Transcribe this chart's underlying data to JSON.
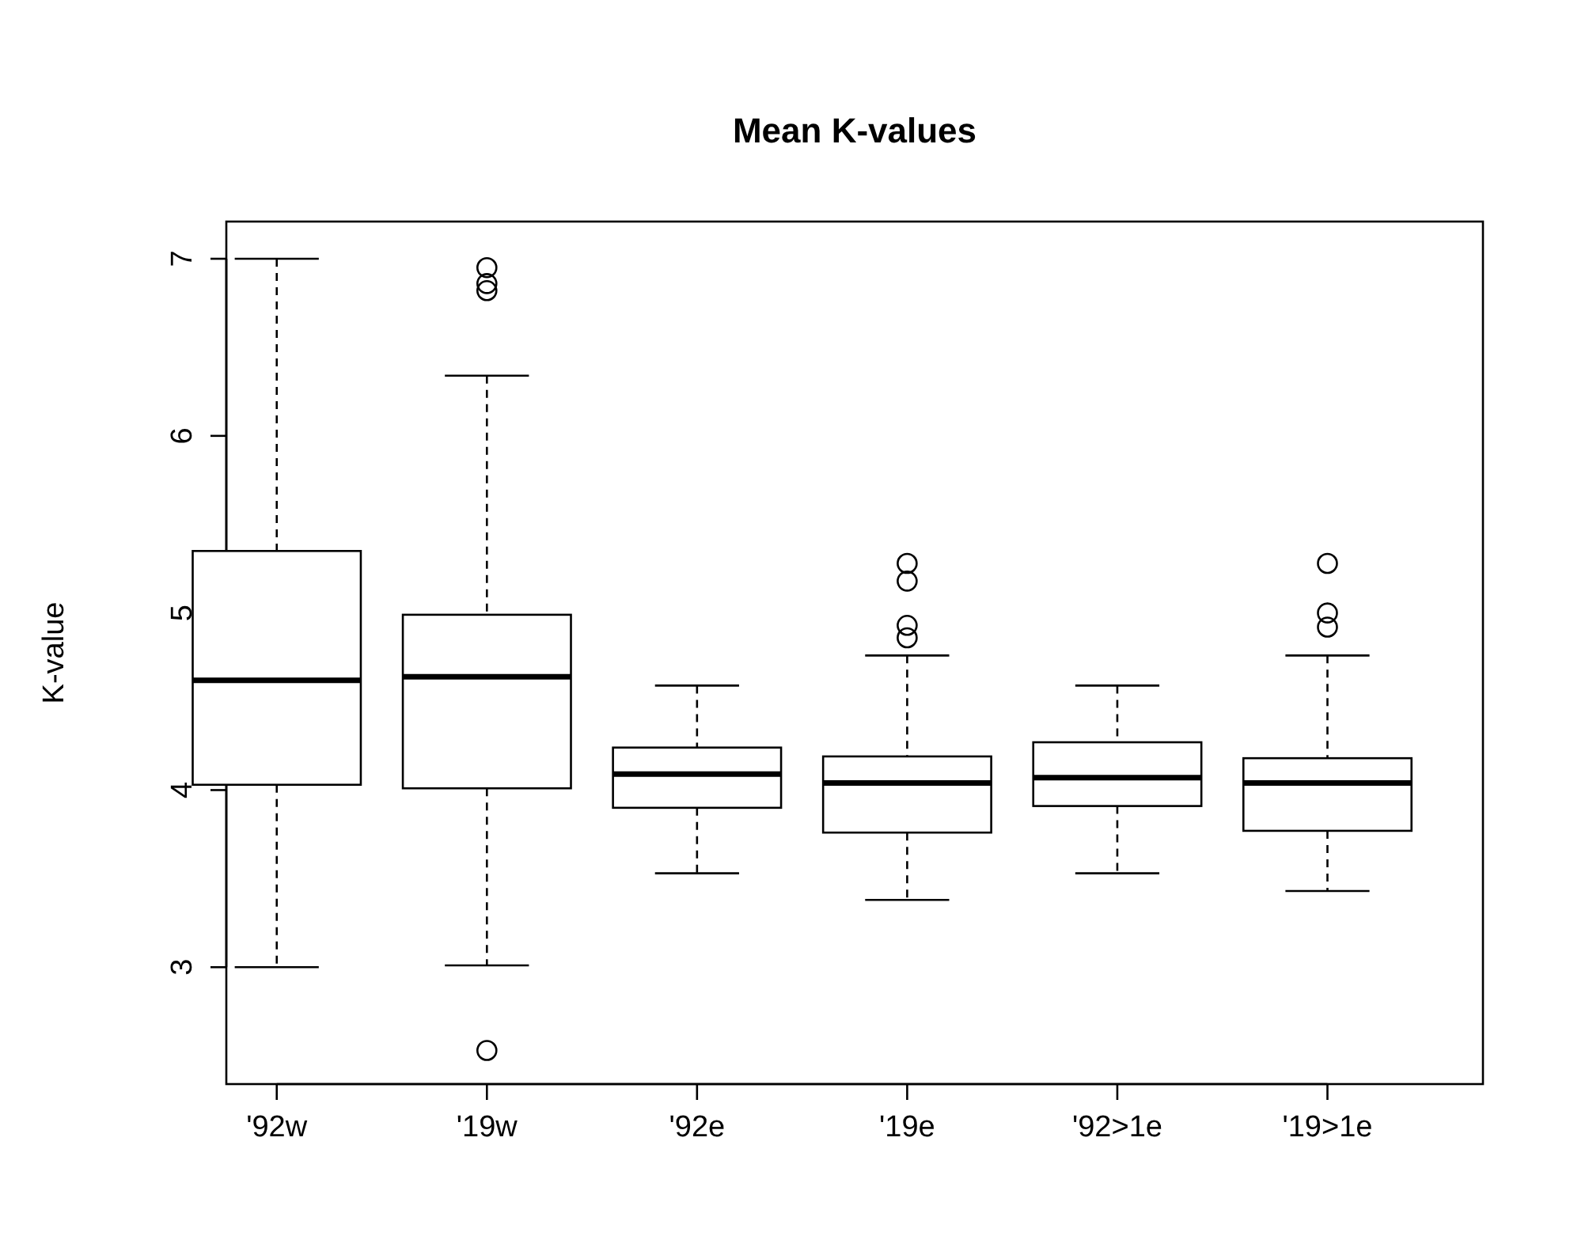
{
  "chart_data": {
    "type": "box",
    "title": "Mean K-values",
    "ylabel": "K-value",
    "categories": [
      "'92w",
      "'19w",
      "'92e",
      "'19e",
      "'92>1e",
      "'19>1e"
    ],
    "boxes": [
      {
        "low": 3.0,
        "q1": 4.03,
        "median": 4.62,
        "q3": 5.35,
        "high": 7.0
      },
      {
        "low": 3.01,
        "q1": 4.01,
        "median": 4.64,
        "q3": 4.99,
        "high": 6.34,
        "outliers": [
          6.95,
          6.86,
          6.82,
          2.53
        ]
      },
      {
        "low": 3.53,
        "q1": 3.9,
        "median": 4.09,
        "q3": 4.24,
        "high": 4.59
      },
      {
        "low": 3.38,
        "q1": 3.76,
        "median": 4.04,
        "q3": 4.19,
        "high": 4.76,
        "outliers": [
          5.28,
          5.18,
          4.93,
          4.86
        ]
      },
      {
        "low": 3.53,
        "q1": 3.91,
        "median": 4.07,
        "q3": 4.27,
        "high": 4.59
      },
      {
        "low": 3.43,
        "q1": 3.77,
        "median": 4.04,
        "q3": 4.18,
        "high": 4.76,
        "outliers": [
          5.28,
          5.0,
          4.92
        ]
      }
    ],
    "ylim": [
      2.34,
      7.21
    ],
    "yticks": [
      3,
      4,
      5,
      6,
      7
    ]
  }
}
